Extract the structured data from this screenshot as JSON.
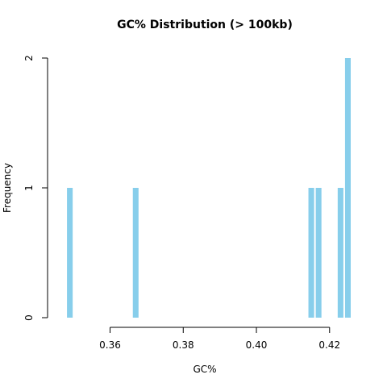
{
  "chart_data": {
    "type": "bar",
    "title": "GC% Distribution (> 100kb)",
    "xlabel": "GC%",
    "ylabel": "Frequency",
    "color": "#87ceeb",
    "bin_width": 0.002,
    "xlim": [
      0.346,
      0.426
    ],
    "ylim": [
      0,
      2
    ],
    "x_ticks": [
      0.36,
      0.38,
      0.4,
      0.42
    ],
    "x_tick_labels": [
      "0.36",
      "0.38",
      "0.40",
      "0.42"
    ],
    "y_ticks": [
      0,
      1,
      2
    ],
    "y_tick_labels": [
      "0",
      "1",
      "2"
    ],
    "bins": [
      {
        "start": 0.348,
        "end": 0.35,
        "count": 1
      },
      {
        "start": 0.366,
        "end": 0.368,
        "count": 1
      },
      {
        "start": 0.414,
        "end": 0.416,
        "count": 1
      },
      {
        "start": 0.416,
        "end": 0.418,
        "count": 1
      },
      {
        "start": 0.422,
        "end": 0.424,
        "count": 1
      },
      {
        "start": 0.424,
        "end": 0.426,
        "count": 2
      }
    ]
  }
}
